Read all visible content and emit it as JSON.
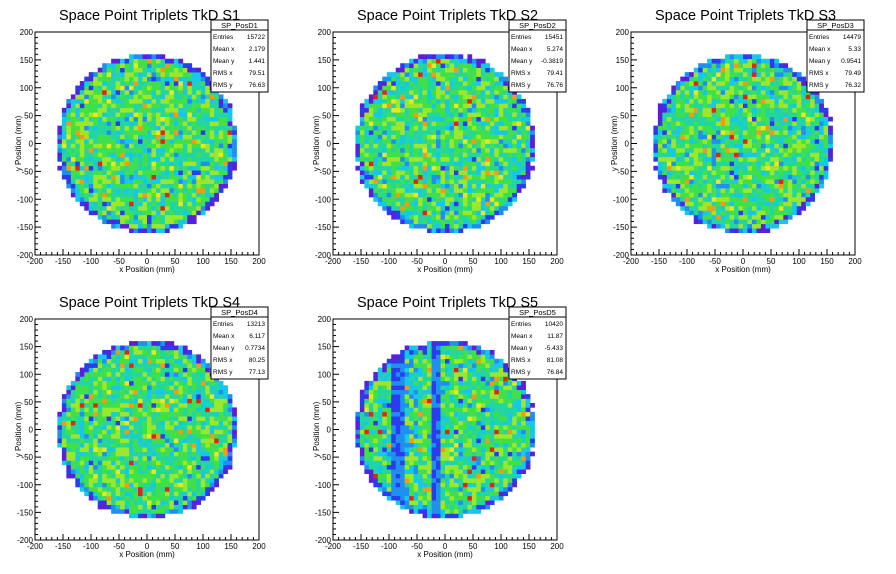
{
  "chart_data": [
    {
      "type": "heatmap",
      "title": "Space Point Triplets TkD S1",
      "xlabel": "x Position (mm)",
      "ylabel": "y Position (mm)",
      "xlim": [
        -200,
        200
      ],
      "ylim": [
        -200,
        200
      ],
      "xticks": [
        "-200",
        "-150",
        "-100",
        "-50",
        "0",
        "50",
        "100",
        "150",
        "200"
      ],
      "yticks": [
        "-200",
        "-150",
        "-100",
        "-50",
        "0",
        "50",
        "100",
        "150",
        "200"
      ],
      "stats": {
        "name": "SP_PosD1",
        "rows": [
          [
            "Entries",
            "15722"
          ],
          [
            "Mean x",
            "2.179"
          ],
          [
            "Mean y",
            "1.441"
          ],
          [
            "RMS x",
            "79.51"
          ],
          [
            "RMS y",
            "76.63"
          ]
        ]
      },
      "distribution": {
        "radius_mm": 160,
        "bin_mm": 8,
        "seed": 11,
        "stripes": false
      }
    },
    {
      "type": "heatmap",
      "title": "Space Point Triplets TkD S2",
      "xlabel": "x Position (mm)",
      "ylabel": "y Position (mm)",
      "xlim": [
        -200,
        200
      ],
      "ylim": [
        -200,
        200
      ],
      "xticks": [
        "-200",
        "-150",
        "-100",
        "-50",
        "0",
        "50",
        "100",
        "150",
        "200"
      ],
      "yticks": [
        "-200",
        "-150",
        "-100",
        "-50",
        "0",
        "50",
        "100",
        "150",
        "200"
      ],
      "stats": {
        "name": "SP_PosD2",
        "rows": [
          [
            "Entries",
            "15451"
          ],
          [
            "Mean x",
            "5.274"
          ],
          [
            "Mean y",
            "-0.3819"
          ],
          [
            "RMS x",
            "79.41"
          ],
          [
            "RMS y",
            "76.76"
          ]
        ]
      },
      "distribution": {
        "radius_mm": 160,
        "bin_mm": 8,
        "seed": 22,
        "stripes": false
      }
    },
    {
      "type": "heatmap",
      "title": "Space Point Triplets TkD S3",
      "xlabel": "x Position (mm)",
      "ylabel": "y Position (mm)",
      "xlim": [
        -200,
        200
      ],
      "ylim": [
        -200,
        200
      ],
      "xticks": [
        "-200",
        "-150",
        "-100",
        "-50",
        "0",
        "50",
        "100",
        "150",
        "200"
      ],
      "yticks": [
        "-200",
        "-150",
        "-100",
        "-50",
        "0",
        "50",
        "100",
        "150",
        "200"
      ],
      "stats": {
        "name": "SP_PosD3",
        "rows": [
          [
            "Entries",
            "14479"
          ],
          [
            "Mean x",
            "5.33"
          ],
          [
            "Mean y",
            "0.9541"
          ],
          [
            "RMS x",
            "79.49"
          ],
          [
            "RMS y",
            "76.32"
          ]
        ]
      },
      "distribution": {
        "radius_mm": 160,
        "bin_mm": 8,
        "seed": 33,
        "stripes": false
      }
    },
    {
      "type": "heatmap",
      "title": "Space Point Triplets TkD S4",
      "xlabel": "x Position (mm)",
      "ylabel": "y Position (mm)",
      "xlim": [
        -200,
        200
      ],
      "ylim": [
        -200,
        200
      ],
      "xticks": [
        "-200",
        "-150",
        "-100",
        "-50",
        "0",
        "50",
        "100",
        "150",
        "200"
      ],
      "yticks": [
        "-200",
        "-150",
        "-100",
        "-50",
        "0",
        "50",
        "100",
        "150",
        "200"
      ],
      "stats": {
        "name": "SP_PosD4",
        "rows": [
          [
            "Entries",
            "13213"
          ],
          [
            "Mean x",
            "6.117"
          ],
          [
            "Mean y",
            "0.7734"
          ],
          [
            "RMS x",
            "80.25"
          ],
          [
            "RMS y",
            "77.13"
          ]
        ]
      },
      "distribution": {
        "radius_mm": 160,
        "bin_mm": 8,
        "seed": 44,
        "stripes": false
      }
    },
    {
      "type": "heatmap",
      "title": "Space Point Triplets TkD S5",
      "xlabel": "x Position (mm)",
      "ylabel": "y Position (mm)",
      "xlim": [
        -200,
        200
      ],
      "ylim": [
        -200,
        200
      ],
      "xticks": [
        "-200",
        "-150",
        "-100",
        "-50",
        "0",
        "50",
        "100",
        "150",
        "200"
      ],
      "yticks": [
        "-200",
        "-150",
        "-100",
        "-50",
        "0",
        "50",
        "100",
        "150",
        "200"
      ],
      "stats": {
        "name": "SP_PosD5",
        "rows": [
          [
            "Entries",
            "10420"
          ],
          [
            "Mean x",
            "11.87"
          ],
          [
            "Mean y",
            "-5.433"
          ],
          [
            "RMS x",
            "81.08"
          ],
          [
            "RMS y",
            "76.84"
          ]
        ]
      },
      "distribution": {
        "radius_mm": 160,
        "bin_mm": 8,
        "seed": 55,
        "stripes": true
      }
    }
  ],
  "colors": {
    "palette": [
      "#5a1fd8",
      "#2a3bf0",
      "#1f8ff0",
      "#15c8e8",
      "#23d6a0",
      "#3fe04a",
      "#9be82a",
      "#e8e81f",
      "#f59a12",
      "#e52410"
    ],
    "frame": "#000000",
    "background": "#ffffff"
  }
}
